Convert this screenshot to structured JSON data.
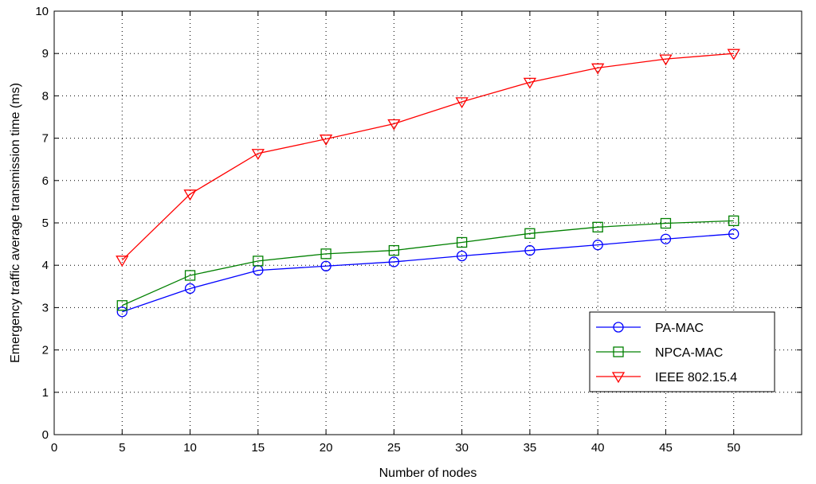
{
  "chart_data": {
    "type": "line",
    "title": "",
    "xlabel": "Number of nodes",
    "ylabel": "Emergency traffic average transmission time (ms)",
    "xlim": [
      0,
      55
    ],
    "ylim": [
      0,
      10
    ],
    "xticks": [
      0,
      5,
      10,
      15,
      20,
      25,
      30,
      35,
      40,
      45,
      50
    ],
    "yticks": [
      0,
      1,
      2,
      3,
      4,
      5,
      6,
      7,
      8,
      9,
      10
    ],
    "grid": true,
    "legend_position": "bottom-right",
    "x": [
      5,
      10,
      15,
      20,
      25,
      30,
      35,
      40,
      45,
      50
    ],
    "series": [
      {
        "name": "PA-MAC",
        "color": "#0000ff",
        "marker": "circle",
        "values": [
          2.9,
          3.45,
          3.88,
          3.98,
          4.08,
          4.22,
          4.35,
          4.48,
          4.62,
          4.74
        ]
      },
      {
        "name": "NPCA-MAC",
        "color": "#008000",
        "marker": "square",
        "values": [
          3.05,
          3.76,
          4.1,
          4.27,
          4.35,
          4.54,
          4.75,
          4.9,
          4.99,
          5.05
        ]
      },
      {
        "name": "IEEE 802.15.4",
        "color": "#ff0000",
        "marker": "triangle-down",
        "values": [
          4.12,
          5.68,
          6.64,
          6.98,
          7.34,
          7.86,
          8.32,
          8.66,
          8.87,
          9.0
        ]
      }
    ]
  }
}
